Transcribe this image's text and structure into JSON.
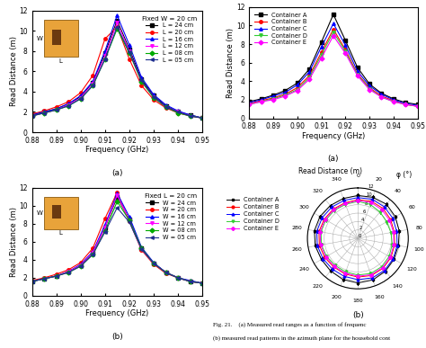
{
  "chart_data": [
    {
      "type": "line",
      "title": "(a)",
      "x_label": "Frequency (GHz)",
      "y_label": "Read Distance (m)",
      "annotations": [
        "Fixed W = 20 cm",
        "W",
        "L"
      ],
      "legend": "upper right",
      "x": [
        0.88,
        0.885,
        0.89,
        0.895,
        0.9,
        0.905,
        0.91,
        0.915,
        0.92,
        0.925,
        0.93,
        0.935,
        0.94,
        0.945,
        0.95
      ],
      "xlim": [
        0.88,
        0.95
      ],
      "xticks": [
        0.88,
        0.89,
        {
          "value": 0.9,
          "label": "0.90"
        },
        0.91,
        0.92,
        0.93,
        0.94,
        0.95
      ],
      "ylim": [
        0,
        12
      ],
      "yticks": [
        0,
        2,
        4,
        6,
        8,
        10,
        12
      ],
      "series": [
        {
          "name": "L = 24 cm",
          "color": "#000000",
          "marker": "square",
          "values": [
            1.7,
            2.0,
            2.3,
            2.8,
            3.5,
            4.9,
            7.8,
            11.0,
            8.2,
            5.2,
            3.6,
            2.6,
            2.0,
            1.7,
            1.4
          ]
        },
        {
          "name": "L = 20 cm",
          "color": "#ff0000",
          "marker": "circle",
          "values": [
            1.8,
            2.1,
            2.5,
            3.0,
            3.9,
            5.6,
            9.2,
            10.4,
            7.2,
            4.6,
            3.2,
            2.4,
            1.9,
            1.6,
            1.4
          ]
        },
        {
          "name": "L = 16 cm",
          "color": "#0000ff",
          "marker": "triangle_up",
          "values": [
            1.7,
            2.0,
            2.3,
            2.8,
            3.6,
            5.0,
            8.0,
            11.5,
            8.6,
            5.4,
            3.7,
            2.7,
            2.1,
            1.7,
            1.4
          ]
        },
        {
          "name": "L = 12 cm",
          "color": "#ff00ff",
          "marker": "triangle_down",
          "values": [
            1.6,
            1.9,
            2.2,
            2.7,
            3.4,
            4.8,
            7.5,
            10.8,
            8.0,
            5.0,
            3.5,
            2.5,
            2.0,
            1.6,
            1.4
          ]
        },
        {
          "name": "L = 08 cm",
          "color": "#00aa00",
          "marker": "diamond",
          "values": [
            1.6,
            1.9,
            2.2,
            2.6,
            3.3,
            4.6,
            7.2,
            10.2,
            7.8,
            5.0,
            3.4,
            2.5,
            1.9,
            1.6,
            1.4
          ]
        },
        {
          "name": "L = 05 cm",
          "color": "#1f2f8f",
          "marker": "triangle_left",
          "values": [
            1.6,
            1.9,
            2.2,
            2.6,
            3.3,
            4.6,
            7.2,
            10.4,
            7.9,
            5.1,
            3.5,
            2.5,
            2.0,
            1.6,
            1.4
          ]
        }
      ]
    },
    {
      "type": "line",
      "title": "(b)",
      "x_label": "Frequency (GHz)",
      "y_label": "Read Distance (m)",
      "annotations": [
        "Fixed L = 20 cm",
        "W",
        "L"
      ],
      "legend": "upper right",
      "x": [
        0.88,
        0.885,
        0.89,
        0.895,
        0.9,
        0.905,
        0.91,
        0.915,
        0.92,
        0.925,
        0.93,
        0.935,
        0.94,
        0.945,
        0.95
      ],
      "xlim": [
        0.88,
        0.95
      ],
      "xticks": [
        0.88,
        0.89,
        {
          "value": 0.9,
          "label": "0.90"
        },
        0.91,
        0.92,
        0.93,
        0.94,
        0.95
      ],
      "ylim": [
        0,
        12
      ],
      "yticks": [
        0,
        2,
        4,
        6,
        8,
        10,
        12
      ],
      "series": [
        {
          "name": "W = 24 cm",
          "color": "#000000",
          "marker": "square",
          "values": [
            1.6,
            1.9,
            2.2,
            2.7,
            3.4,
            4.8,
            7.6,
            11.0,
            8.5,
            5.3,
            3.6,
            2.6,
            2.0,
            1.6,
            1.4
          ]
        },
        {
          "name": "W = 20 cm",
          "color": "#ff0000",
          "marker": "circle",
          "values": [
            1.7,
            2.0,
            2.4,
            2.9,
            3.7,
            5.3,
            8.6,
            11.5,
            8.3,
            5.1,
            3.5,
            2.5,
            2.0,
            1.6,
            1.4
          ]
        },
        {
          "name": "W = 16 cm",
          "color": "#0000ff",
          "marker": "triangle_up",
          "values": [
            1.6,
            1.9,
            2.2,
            2.7,
            3.5,
            4.9,
            7.9,
            11.4,
            8.8,
            5.4,
            3.7,
            2.6,
            2.0,
            1.7,
            1.4
          ]
        },
        {
          "name": "W = 12 cm",
          "color": "#ff00ff",
          "marker": "triangle_down",
          "values": [
            1.6,
            1.9,
            2.2,
            2.7,
            3.4,
            4.8,
            7.6,
            11.2,
            8.4,
            5.2,
            3.6,
            2.6,
            2.0,
            1.6,
            1.4
          ]
        },
        {
          "name": "W = 08 cm",
          "color": "#00aa00",
          "marker": "diamond",
          "values": [
            1.6,
            1.9,
            2.2,
            2.6,
            3.3,
            4.6,
            7.2,
            10.5,
            8.4,
            5.3,
            3.6,
            2.6,
            2.0,
            1.6,
            1.4
          ]
        },
        {
          "name": "W = 05 cm",
          "color": "#1f2f8f",
          "marker": "triangle_left",
          "values": [
            1.6,
            1.9,
            2.2,
            2.6,
            3.3,
            4.6,
            7.1,
            9.8,
            8.2,
            5.2,
            3.6,
            2.6,
            2.0,
            1.6,
            1.4
          ]
        }
      ]
    },
    {
      "type": "line",
      "title": "(a)",
      "x_label": "Frequency (GHz)",
      "y_label": "Read Distance (m)",
      "legend": "upper left",
      "x": [
        0.88,
        0.885,
        0.89,
        0.895,
        0.9,
        0.905,
        0.91,
        0.915,
        0.92,
        0.925,
        0.93,
        0.935,
        0.94,
        0.945,
        0.95
      ],
      "xlim": [
        0.88,
        0.95
      ],
      "xticks": [
        0.88,
        0.89,
        {
          "value": 0.9,
          "label": "0.90"
        },
        0.91,
        0.92,
        0.93,
        0.94,
        0.95
      ],
      "ylim": [
        0,
        12
      ],
      "yticks": [
        0,
        2,
        4,
        6,
        8,
        10,
        12
      ],
      "series": [
        {
          "name": "Container A",
          "color": "#000000",
          "marker": "square",
          "values": [
            1.8,
            2.1,
            2.5,
            3.0,
            3.8,
            5.3,
            8.2,
            11.2,
            8.4,
            5.5,
            3.7,
            2.7,
            2.1,
            1.7,
            1.5
          ]
        },
        {
          "name": "Container B",
          "color": "#ff0000",
          "marker": "circle",
          "values": [
            1.6,
            1.9,
            2.2,
            2.6,
            3.3,
            4.6,
            7.1,
            9.6,
            7.4,
            4.8,
            3.3,
            2.4,
            1.9,
            1.5,
            1.3
          ]
        },
        {
          "name": "Container C",
          "color": "#0000ff",
          "marker": "triangle_up",
          "values": [
            1.7,
            2.0,
            2.4,
            2.8,
            3.6,
            5.0,
            7.7,
            10.2,
            7.9,
            5.1,
            3.5,
            2.6,
            2.0,
            1.6,
            1.4
          ]
        },
        {
          "name": "Container D",
          "color": "#33cc33",
          "marker": "triangle_down",
          "values": [
            1.5,
            1.8,
            2.1,
            2.5,
            3.1,
            4.4,
            6.8,
            9.3,
            7.2,
            4.7,
            3.2,
            2.3,
            1.8,
            1.5,
            1.3
          ]
        },
        {
          "name": "Container E",
          "color": "#ff00ff",
          "marker": "diamond",
          "values": [
            1.5,
            1.8,
            2.0,
            2.4,
            3.0,
            4.2,
            6.5,
            8.9,
            7.0,
            4.6,
            3.1,
            2.3,
            1.8,
            1.5,
            1.3
          ]
        }
      ]
    },
    {
      "type": "polar",
      "title": "(b)",
      "annotations": [
        "Read Distance (m)",
        "φ (°)"
      ],
      "legend": "upper left",
      "grid": true,
      "x": [
        0,
        20,
        40,
        60,
        80,
        100,
        120,
        140,
        160,
        180,
        200,
        220,
        240,
        260,
        280,
        300,
        320,
        340
      ],
      "xlim": [
        0,
        360
      ],
      "xticks": [
        0,
        20,
        40,
        60,
        80,
        100,
        120,
        140,
        160,
        180,
        200,
        220,
        240,
        260,
        280,
        300,
        320,
        340
      ],
      "ylim": [
        0,
        12
      ],
      "yticks": [
        0,
        2,
        4,
        6,
        8,
        10,
        12
      ],
      "series": [
        {
          "name": "Container A",
          "color": "#000000",
          "marker": "square",
          "values": [
            10.2,
            10.4,
            10.6,
            10.3,
            10.0,
            9.8,
            9.9,
            10.2,
            10.5,
            10.6,
            10.4,
            10.1,
            10.0,
            10.3,
            10.5,
            10.4,
            10.2,
            10.1
          ]
        },
        {
          "name": "Container B",
          "color": "#ff0000",
          "marker": "circle",
          "values": [
            9.2,
            9.4,
            9.3,
            9.0,
            8.8,
            8.9,
            9.1,
            9.3,
            9.4,
            9.2,
            9.0,
            8.9,
            9.1,
            9.3,
            9.4,
            9.2,
            9.1,
            9.0
          ]
        },
        {
          "name": "Container C",
          "color": "#0000ff",
          "marker": "triangle_up",
          "values": [
            9.7,
            9.9,
            9.8,
            9.6,
            9.4,
            9.5,
            9.7,
            9.9,
            10.0,
            9.8,
            9.6,
            9.5,
            9.6,
            9.8,
            9.9,
            9.8,
            9.7,
            9.6
          ]
        },
        {
          "name": "Container D",
          "color": "#33cc33",
          "marker": "triangle_down",
          "values": [
            8.8,
            8.6,
            8.2,
            7.9,
            8.0,
            8.3,
            8.6,
            8.8,
            8.9,
            8.7,
            8.5,
            8.4,
            8.6,
            8.8,
            8.9,
            8.8,
            8.7,
            8.6
          ]
        },
        {
          "name": "Container E",
          "color": "#ff00ff",
          "marker": "diamond",
          "values": [
            9.0,
            9.1,
            8.9,
            8.7,
            8.6,
            8.7,
            8.9,
            9.1,
            9.2,
            9.0,
            8.8,
            8.7,
            8.8,
            9.0,
            9.1,
            9.0,
            8.9,
            8.8
          ]
        }
      ]
    }
  ],
  "figure_caption": [
    "Fig. 21.    (a) Measured read ranges as a function of frequenc",
    "(b) measured read patterns in the azimuth plane for the household cont"
  ]
}
